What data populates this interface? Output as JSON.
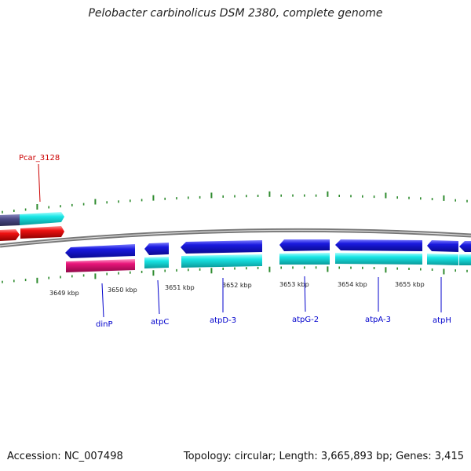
{
  "title": "Pelobacter carbinolicus DSM 2380, complete genome",
  "footer": {
    "accession": "Accession: NC_007498",
    "summary": "Topology: circular; Length: 3,665,893 bp; Genes: 3,415"
  },
  "colors": {
    "backbone": "#777777",
    "tick": "#2e8b2e",
    "gene_blue": "#1a1adf",
    "gene_cyan": "#19e6e6",
    "gene_red": "#ee1111",
    "gene_magenta": "#e8157a",
    "gene_slate": "#4b4a86",
    "label_blue": "#0000cc",
    "label_red": "#cc0000"
  },
  "scale_labels": [
    "3649 kbp",
    "3650 kbp",
    "3651 kbp",
    "3652 kbp",
    "3653 kbp",
    "3654 kbp",
    "3655 kbp"
  ],
  "gene_labels": [
    {
      "name": "Pcar_3128",
      "color": "red"
    },
    {
      "name": "dinP",
      "color": "blue"
    },
    {
      "name": "atpC",
      "color": "blue"
    },
    {
      "name": "atpD-3",
      "color": "blue"
    },
    {
      "name": "atpG-2",
      "color": "blue"
    },
    {
      "name": "atpA-3",
      "color": "blue"
    },
    {
      "name": "atpH",
      "color": "blue"
    }
  ]
}
